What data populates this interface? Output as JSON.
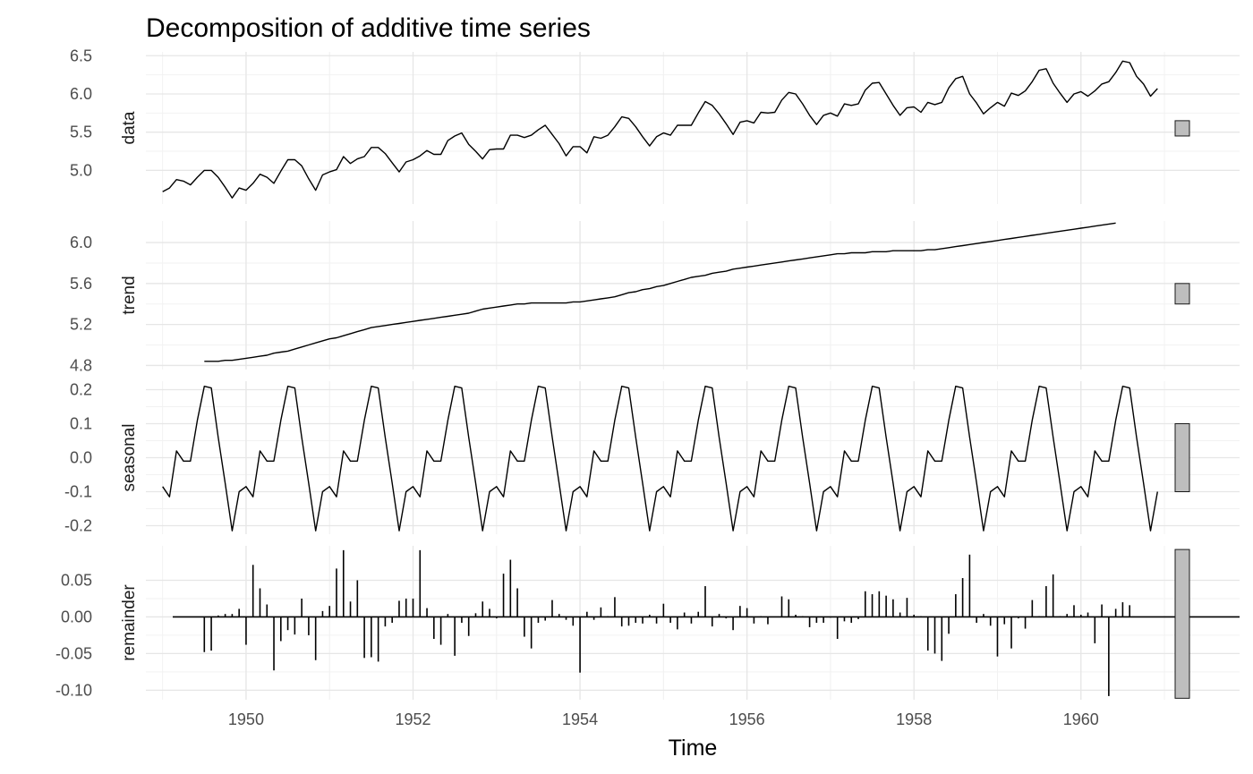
{
  "chart_data": {
    "type": "line",
    "title": "Decomposition of additive time series",
    "xlabel": "Time",
    "x_range": [
      1948.8,
      1961.9
    ],
    "x_ticks": [
      1950,
      1952,
      1954,
      1956,
      1958,
      1960
    ],
    "x_tick_labels": [
      "1950",
      "1952",
      "1954",
      "1956",
      "1958",
      "1960"
    ],
    "grid": true,
    "legend": "none",
    "series_start": 1949.0,
    "series_step": 0.083333,
    "panels": [
      {
        "label": "data",
        "style": "line",
        "ylim": [
          4.56,
          6.55
        ],
        "y_ticks": [
          5.0,
          5.5,
          6.0,
          6.5
        ],
        "y_tick_labels": [
          "5.0",
          "5.5",
          "6.0",
          "6.5"
        ],
        "range_bar": [
          5.45,
          5.65
        ],
        "values": [
          4.72,
          4.77,
          4.88,
          4.86,
          4.81,
          4.91,
          5.0,
          5.0,
          4.91,
          4.78,
          4.64,
          4.77,
          4.74,
          4.83,
          4.95,
          4.91,
          4.83,
          4.99,
          5.14,
          5.14,
          5.06,
          4.89,
          4.74,
          4.94,
          4.98,
          5.01,
          5.18,
          5.09,
          5.15,
          5.18,
          5.3,
          5.3,
          5.22,
          5.1,
          4.98,
          5.11,
          5.14,
          5.19,
          5.26,
          5.21,
          5.21,
          5.39,
          5.45,
          5.49,
          5.34,
          5.25,
          5.15,
          5.27,
          5.28,
          5.28,
          5.46,
          5.46,
          5.43,
          5.46,
          5.53,
          5.59,
          5.47,
          5.35,
          5.19,
          5.31,
          5.31,
          5.23,
          5.44,
          5.42,
          5.46,
          5.57,
          5.7,
          5.68,
          5.57,
          5.44,
          5.32,
          5.44,
          5.49,
          5.46,
          5.59,
          5.59,
          5.59,
          5.75,
          5.9,
          5.85,
          5.74,
          5.61,
          5.47,
          5.63,
          5.65,
          5.62,
          5.76,
          5.75,
          5.76,
          5.92,
          6.02,
          6.0,
          5.87,
          5.72,
          5.6,
          5.72,
          5.75,
          5.71,
          5.87,
          5.85,
          5.87,
          6.05,
          6.14,
          6.15,
          6.0,
          5.85,
          5.72,
          5.82,
          5.83,
          5.76,
          5.89,
          5.86,
          5.89,
          6.08,
          6.2,
          6.23,
          6.0,
          5.88,
          5.74,
          5.82,
          5.89,
          5.84,
          6.01,
          5.98,
          6.04,
          6.16,
          6.31,
          6.33,
          6.14,
          6.01,
          5.89,
          6.0,
          6.03,
          5.97,
          6.04,
          6.13,
          6.16,
          6.28,
          6.43,
          6.41,
          6.23,
          6.13,
          5.97,
          6.07
        ]
      },
      {
        "label": "trend",
        "style": "line",
        "ylim": [
          4.76,
          6.21
        ],
        "y_ticks": [
          4.8,
          5.2,
          5.6,
          6.0
        ],
        "y_tick_labels": [
          "4.8",
          "5.2",
          "5.6",
          "6.0"
        ],
        "range_bar": [
          5.4,
          5.6
        ],
        "values": [
          null,
          null,
          null,
          null,
          null,
          null,
          4.84,
          4.84,
          4.84,
          4.85,
          4.85,
          4.86,
          4.87,
          4.88,
          4.89,
          4.9,
          4.92,
          4.93,
          4.94,
          4.96,
          4.98,
          5.0,
          5.02,
          5.04,
          5.06,
          5.07,
          5.09,
          5.11,
          5.13,
          5.15,
          5.17,
          5.18,
          5.19,
          5.2,
          5.21,
          5.22,
          5.23,
          5.24,
          5.25,
          5.26,
          5.27,
          5.28,
          5.29,
          5.3,
          5.31,
          5.33,
          5.35,
          5.36,
          5.37,
          5.38,
          5.39,
          5.4,
          5.4,
          5.41,
          5.41,
          5.41,
          5.41,
          5.41,
          5.41,
          5.42,
          5.42,
          5.43,
          5.44,
          5.45,
          5.46,
          5.47,
          5.49,
          5.51,
          5.52,
          5.54,
          5.55,
          5.57,
          5.58,
          5.6,
          5.62,
          5.64,
          5.66,
          5.67,
          5.68,
          5.7,
          5.71,
          5.72,
          5.74,
          5.75,
          5.76,
          5.77,
          5.78,
          5.79,
          5.8,
          5.81,
          5.82,
          5.83,
          5.84,
          5.85,
          5.86,
          5.87,
          5.88,
          5.89,
          5.89,
          5.9,
          5.9,
          5.9,
          5.91,
          5.91,
          5.91,
          5.92,
          5.92,
          5.92,
          5.92,
          5.92,
          5.93,
          5.93,
          5.94,
          5.95,
          5.96,
          5.97,
          5.98,
          5.99,
          6.0,
          6.01,
          6.02,
          6.03,
          6.04,
          6.05,
          6.06,
          6.07,
          6.08,
          6.09,
          6.1,
          6.11,
          6.12,
          6.13,
          6.14,
          6.15,
          6.16,
          6.17,
          6.18,
          6.19,
          null,
          null,
          null,
          null,
          null,
          null
        ]
      },
      {
        "label": "seasonal",
        "style": "line",
        "ylim": [
          -0.225,
          0.225
        ],
        "y_ticks": [
          -0.2,
          -0.1,
          0.0,
          0.1,
          0.2
        ],
        "y_tick_labels": [
          "-0.2",
          "-0.1",
          "0.0",
          "0.1",
          "0.2"
        ],
        "range_bar": [
          -0.1,
          0.1
        ],
        "cycle": [
          -0.085,
          -0.115,
          0.02,
          -0.01,
          -0.01,
          0.11,
          0.21,
          0.205,
          0.06,
          -0.075,
          -0.215,
          -0.1
        ],
        "repeats": 12
      },
      {
        "label": "remainder",
        "style": "bars",
        "ylim": [
          -0.113,
          0.097
        ],
        "y_ticks": [
          -0.1,
          -0.05,
          0.0,
          0.05
        ],
        "y_tick_labels": [
          "-0.10",
          "-0.05",
          "0.00",
          "0.05"
        ],
        "range_bar": [
          -0.111,
          0.092
        ],
        "values": [
          null,
          null,
          null,
          null,
          null,
          null,
          -0.048,
          -0.046,
          0.002,
          0.004,
          0.004,
          0.011,
          -0.038,
          0.071,
          0.039,
          0.017,
          -0.073,
          -0.033,
          -0.018,
          -0.024,
          0.025,
          -0.025,
          -0.059,
          0.008,
          0.015,
          0.066,
          0.091,
          0.021,
          0.05,
          -0.056,
          -0.055,
          -0.061,
          -0.013,
          -0.008,
          0.022,
          0.025,
          0.025,
          0.091,
          0.012,
          -0.03,
          -0.038,
          0.004,
          -0.053,
          -0.008,
          -0.026,
          0.005,
          0.021,
          0.011,
          -0.002,
          0.059,
          0.078,
          0.039,
          -0.027,
          -0.043,
          -0.008,
          -0.005,
          0.023,
          0.004,
          -0.004,
          -0.012,
          -0.076,
          0.007,
          -0.004,
          0.013,
          0.001,
          0.027,
          -0.013,
          -0.012,
          -0.008,
          -0.009,
          0.003,
          -0.009,
          0.018,
          -0.008,
          -0.017,
          0.006,
          -0.009,
          0.007,
          0.042,
          -0.013,
          0.004,
          -0.002,
          -0.018,
          0.015,
          0.012,
          -0.009,
          0.001,
          -0.01,
          0.0,
          0.028,
          0.024,
          0.003,
          0.001,
          -0.014,
          -0.008,
          -0.008,
          -0.001,
          -0.03,
          -0.006,
          -0.008,
          -0.003,
          0.035,
          0.031,
          0.035,
          0.029,
          0.024,
          0.006,
          0.026,
          0.003,
          0.001,
          -0.046,
          -0.05,
          -0.06,
          -0.023,
          0.031,
          0.053,
          0.085,
          -0.008,
          0.004,
          -0.012,
          -0.054,
          -0.01,
          -0.043,
          -0.002,
          -0.016,
          0.023,
          0.001,
          0.042,
          0.058,
          0.001,
          0.004,
          0.016,
          0.003,
          0.006,
          -0.036,
          0.017,
          -0.108,
          0.011,
          0.02,
          0.016,
          null,
          null,
          null,
          null,
          null,
          null
        ]
      }
    ]
  }
}
